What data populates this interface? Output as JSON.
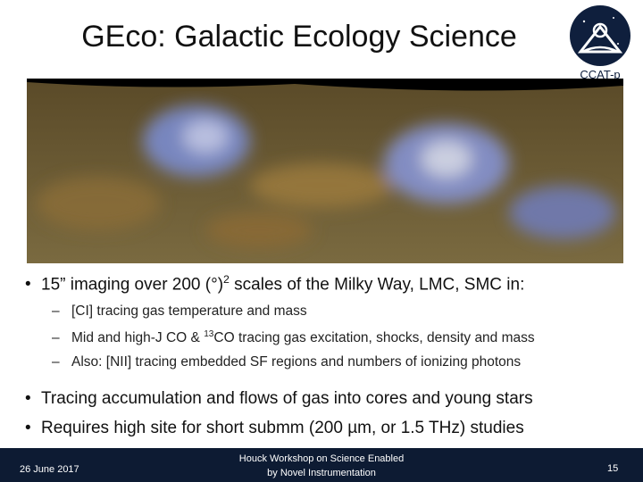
{
  "header": {
    "title": "GEco: Galactic Ecology Science",
    "logo_text": "CCAT-p"
  },
  "bullets": [
    {
      "parts": [
        "15” imaging over 200 (°)",
        "2",
        " scales of the Milky Way, LMC, SMC in:"
      ],
      "sub": [
        {
          "parts": [
            "[CI] tracing gas temperature and mass"
          ]
        },
        {
          "parts": [
            "Mid and high-J CO & ",
            "13",
            "CO tracing gas excitation, shocks, density and mass"
          ]
        },
        {
          "parts": [
            "Also: [NII] tracing embedded SF regions and numbers of ionizing photons"
          ]
        }
      ]
    },
    {
      "parts": [
        "Tracing accumulation and flows of gas into cores and young stars"
      ]
    },
    {
      "parts": [
        "Requires high site for short submm (200 µm, or 1.5 THz) studies"
      ]
    }
  ],
  "footer": {
    "date": "26 June 2017",
    "center": [
      "Houck Workshop on Science Enabled",
      "by Novel Instrumentation"
    ],
    "page": "15"
  }
}
